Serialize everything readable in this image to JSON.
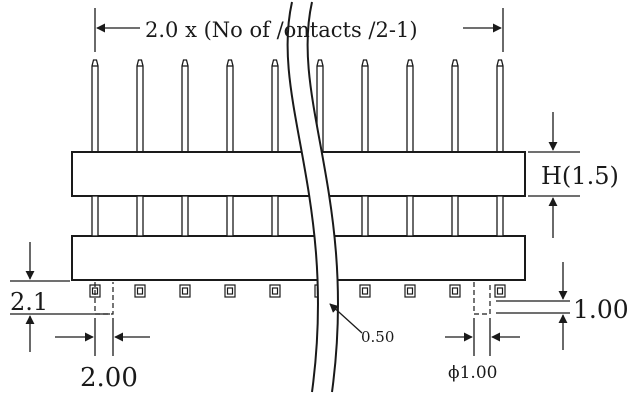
{
  "dimensions": {
    "pitch_span": "2.0 x (No of /ontacts /2-1)",
    "height": "H(1.5)",
    "tail_length": "2.1",
    "pitch": "2.00",
    "pin_width": "0.50",
    "tail_offset": "1.00",
    "hole_diameter": "1.00",
    "phi_symbol": "ϕ"
  },
  "colors": {
    "line": "#1a1a1a",
    "fill": "#ffffff"
  }
}
